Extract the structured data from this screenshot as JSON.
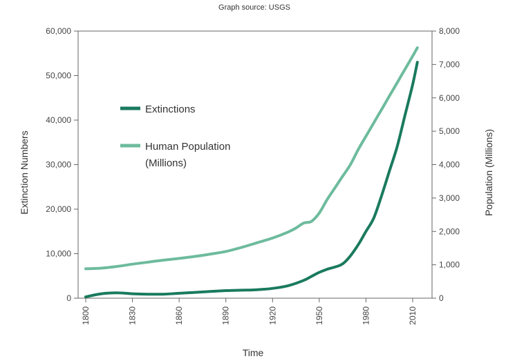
{
  "chart_data": {
    "type": "line",
    "source_note": "Graph source: USGS",
    "xlabel": "Time",
    "ylabel_left": "Extinction Numbers",
    "ylabel_right": "Population (Millions)",
    "x_ticks": [
      1800,
      1830,
      1860,
      1890,
      1920,
      1950,
      1980,
      2010
    ],
    "xlim": [
      1800,
      2010
    ],
    "ylim_left": [
      0,
      60000
    ],
    "ylim_right": [
      0,
      8000
    ],
    "y_ticks_left": [
      "0",
      "10,000",
      "20,000",
      "30,000",
      "40,000",
      "50,000",
      "60,000"
    ],
    "y_ticks_right": [
      "0",
      "1,000",
      "2,000",
      "3,000",
      "4,000",
      "5,000",
      "6,000",
      "7,000",
      "8,000"
    ],
    "grid": false,
    "legend_position": "upper-left",
    "series": [
      {
        "name": "Extinctions",
        "axis": "left",
        "color": "#1a7a5e",
        "x": [
          1800,
          1810,
          1820,
          1830,
          1840,
          1850,
          1860,
          1870,
          1880,
          1890,
          1900,
          1910,
          1920,
          1930,
          1940,
          1945,
          1950,
          1955,
          1960,
          1965,
          1970,
          1975,
          1980,
          1985,
          1990,
          1995,
          2000,
          2005,
          2010,
          2013
        ],
        "values": [
          300,
          1000,
          1200,
          1000,
          900,
          900,
          1100,
          1300,
          1500,
          1700,
          1800,
          1900,
          2200,
          2800,
          4000,
          4900,
          5800,
          6500,
          7000,
          7700,
          9500,
          12000,
          15000,
          18000,
          23000,
          28500,
          34000,
          41000,
          48000,
          53000
        ]
      },
      {
        "name": "Human Population (Millions)",
        "axis": "right",
        "color": "#6dbb9d",
        "x": [
          1800,
          1810,
          1820,
          1830,
          1840,
          1850,
          1860,
          1870,
          1880,
          1890,
          1900,
          1910,
          1920,
          1930,
          1935,
          1940,
          1945,
          1950,
          1955,
          1960,
          1965,
          1970,
          1975,
          1980,
          1985,
          1990,
          1995,
          2000,
          2005,
          2010,
          2013
        ],
        "values": [
          880,
          900,
          950,
          1020,
          1080,
          1140,
          1190,
          1250,
          1320,
          1400,
          1520,
          1660,
          1800,
          1980,
          2100,
          2250,
          2300,
          2550,
          2950,
          3300,
          3650,
          4000,
          4450,
          4850,
          5250,
          5650,
          6050,
          6450,
          6850,
          7250,
          7500
        ]
      }
    ]
  },
  "colors": {
    "extinctions": "#1a7a5e",
    "population": "#6dbb9d",
    "axis": "#666666"
  }
}
